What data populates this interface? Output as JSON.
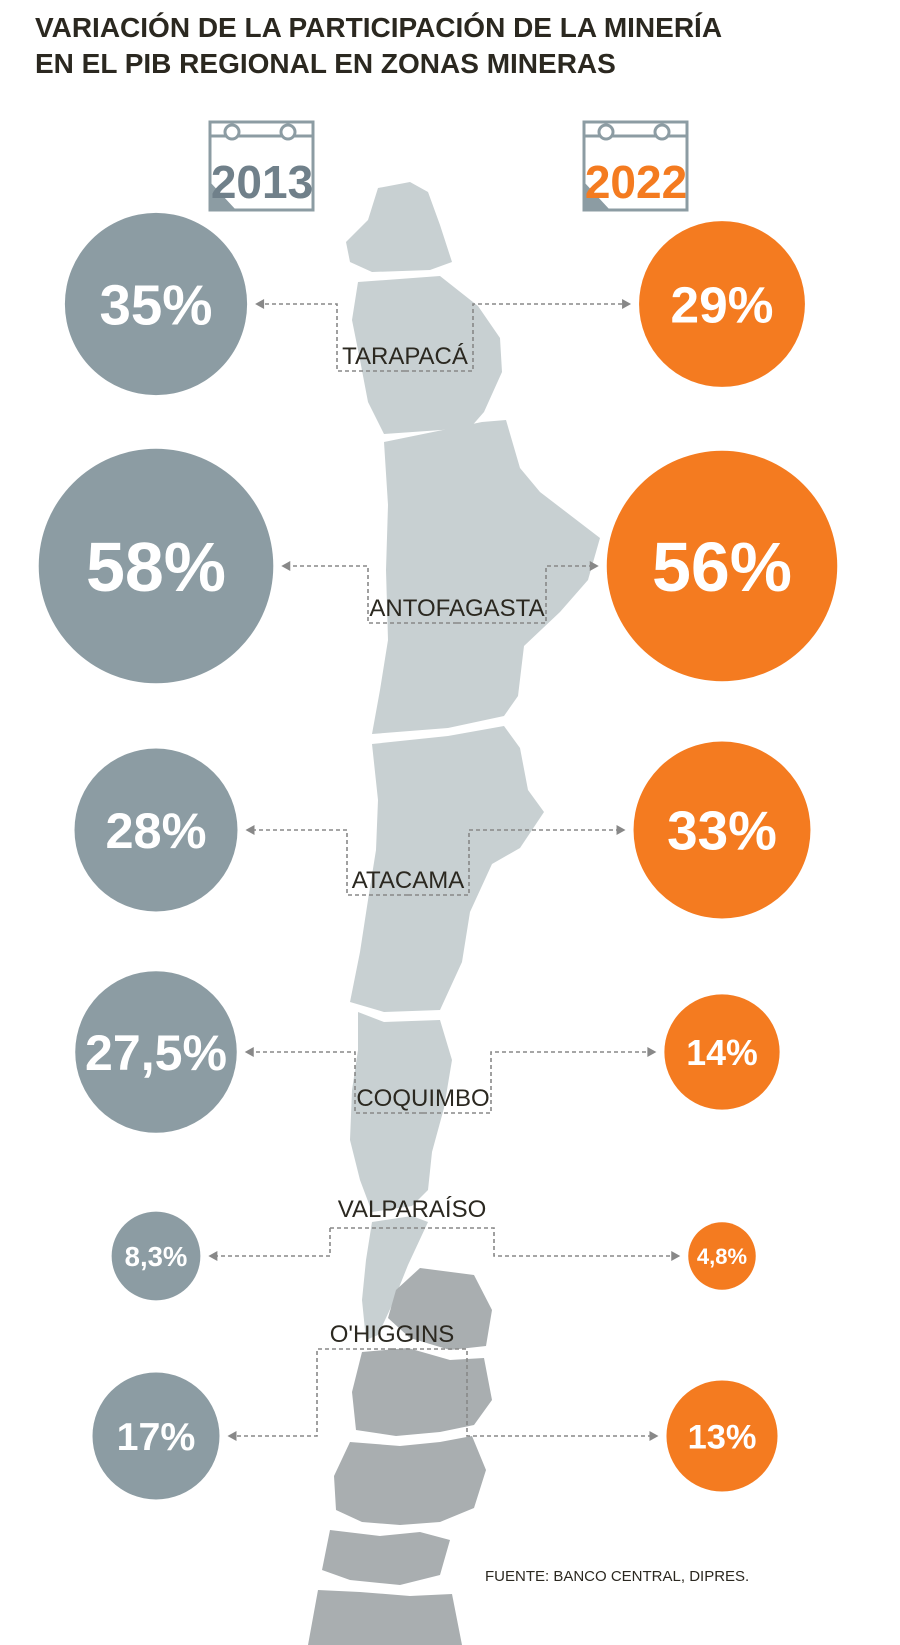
{
  "title_lines": [
    "VARIACIÓN DE LA PARTICIPACIÓN DE LA MINERÍA",
    "EN EL PIB REGIONAL EN ZONAS MINERAS"
  ],
  "source": "FUENTE: BANCO CENTRAL, DIPRES.",
  "colors": {
    "year_2013": "#8c9ca3",
    "year_2022": "#f47b20",
    "map_north": "#c8d0d2",
    "map_south": "#a9aeb0",
    "text": "#2b2820",
    "connector": "#888888"
  },
  "icons": [
    "calendar-icon"
  ],
  "chart_data": {
    "type": "bubble",
    "title": "VARIACIÓN DE LA PARTICIPACIÓN DE LA MINERÍA EN EL PIB REGIONAL EN ZONAS MINERAS",
    "unit": "%",
    "series": [
      {
        "name": "2013",
        "values": [
          35,
          58,
          28,
          27.5,
          8.3,
          17
        ],
        "labels": [
          "35%",
          "58%",
          "28%",
          "27,5%",
          "8,3%",
          "17%"
        ]
      },
      {
        "name": "2022",
        "values": [
          29,
          56,
          33,
          14,
          4.8,
          13
        ],
        "labels": [
          "29%",
          "56%",
          "33%",
          "14%",
          "4,8%",
          "13%"
        ]
      }
    ],
    "categories": [
      "TARAPACÁ",
      "ANTOFAGASTA",
      "ATACAMA",
      "COQUIMBO",
      "VALPARAÍSO",
      "O'HIGGINS"
    ]
  }
}
